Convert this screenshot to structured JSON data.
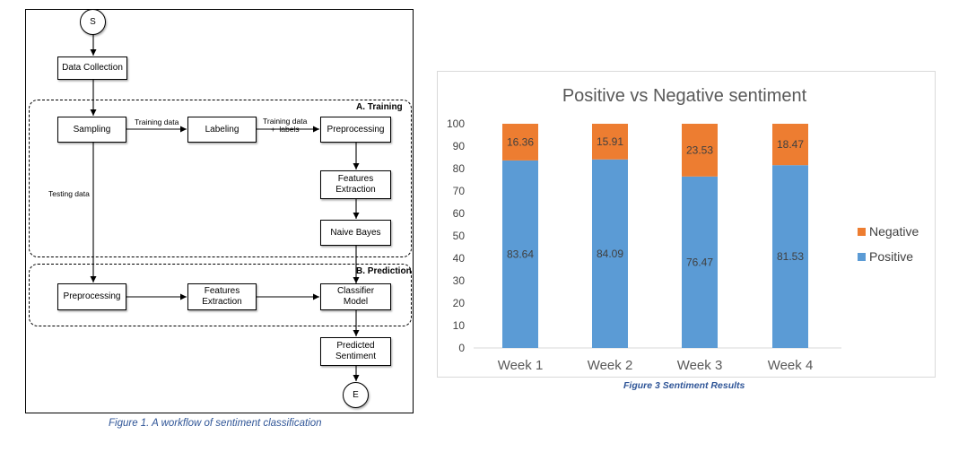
{
  "workflow": {
    "start_label": "S",
    "end_label": "E",
    "nodes": {
      "data_collection": "Data Collection",
      "sampling": "Sampling",
      "labeling": "Labeling",
      "preprocessing_train": "Preprocessing",
      "features_train": "Features\nExtraction",
      "naive_bayes": "Naive Bayes",
      "preprocessing_pred": "Preprocessing",
      "features_pred": "Features\nExtraction",
      "classifier": "Classifier\nModel",
      "predicted": "Predicted\nSentiment"
    },
    "edge_labels": {
      "training_data": "Training data",
      "training_data_labels": "Training data\n+  labels",
      "testing_data": "Testing data"
    },
    "sections": {
      "training": "A. Training",
      "prediction": "B. Prediction"
    },
    "caption": "Figure 1. A workflow of sentiment classification"
  },
  "chart_caption": "Figure 3 Sentiment Results",
  "chart_data": {
    "type": "bar",
    "stacked": true,
    "title": "Positive vs Negative sentiment",
    "categories": [
      "Week 1",
      "Week 2",
      "Week 3",
      "Week 4"
    ],
    "series": [
      {
        "name": "Positive",
        "values": [
          83.64,
          84.09,
          76.47,
          81.53
        ],
        "color": "#5b9bd5"
      },
      {
        "name": "Negative",
        "values": [
          16.36,
          15.91,
          23.53,
          18.47
        ],
        "color": "#ed7d31"
      }
    ],
    "ylim": [
      0,
      100
    ],
    "yticks": [
      0,
      10,
      20,
      30,
      40,
      50,
      60,
      70,
      80,
      90,
      100
    ],
    "xlabel": "",
    "ylabel": "",
    "grid": false,
    "legend_position": "right",
    "legend_order": [
      "Negative",
      "Positive"
    ],
    "data_labels": true
  }
}
